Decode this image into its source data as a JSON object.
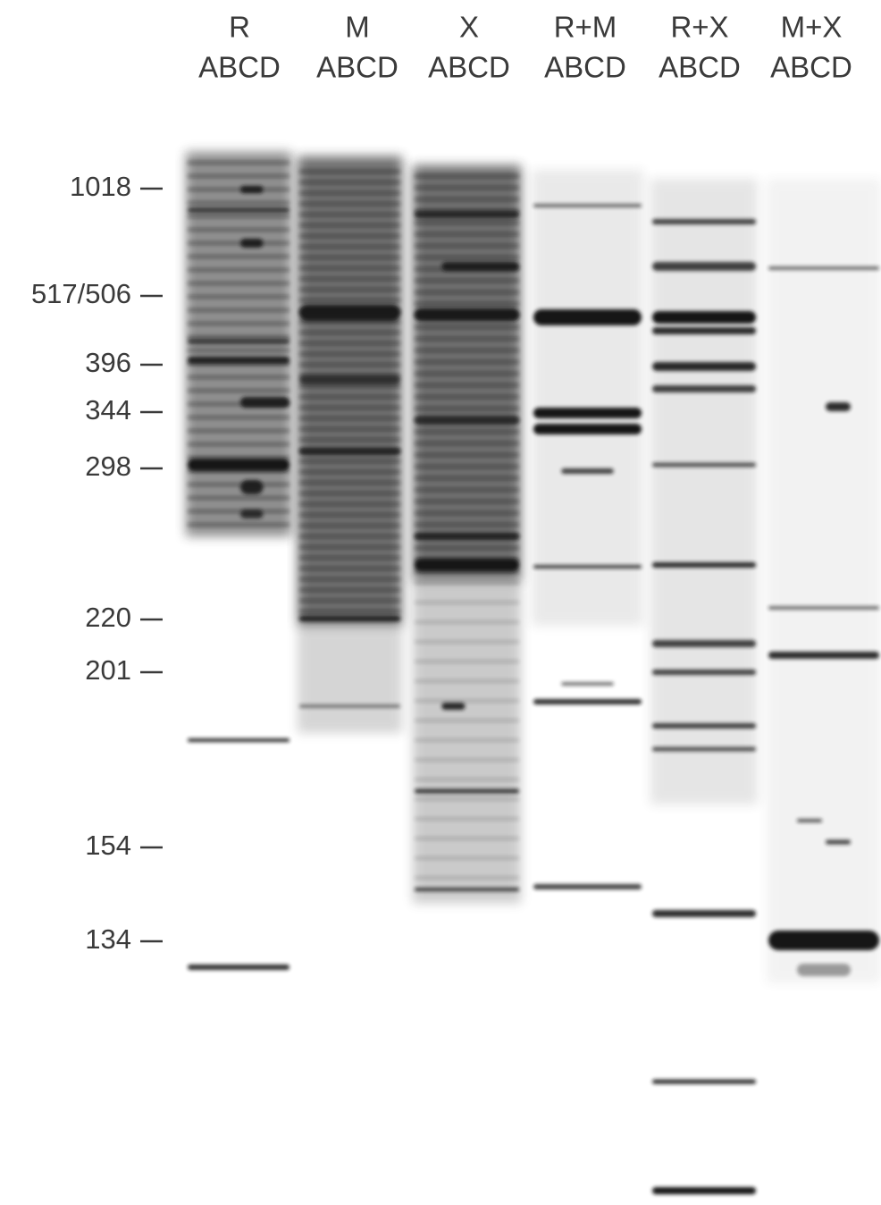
{
  "lane_groups": [
    {
      "name": "R",
      "lanes": "ABCD"
    },
    {
      "name": "M",
      "lanes": "ABCD"
    },
    {
      "name": "X",
      "lanes": "ABCD"
    },
    {
      "name": "R+M",
      "lanes": "ABCD"
    },
    {
      "name": "R+X",
      "lanes": "ABCD"
    },
    {
      "name": "M+X",
      "lanes": "ABCD"
    }
  ],
  "size_markers": [
    "1018",
    "517/506",
    "396",
    "344",
    "298",
    "220",
    "201",
    "154",
    "134"
  ]
}
